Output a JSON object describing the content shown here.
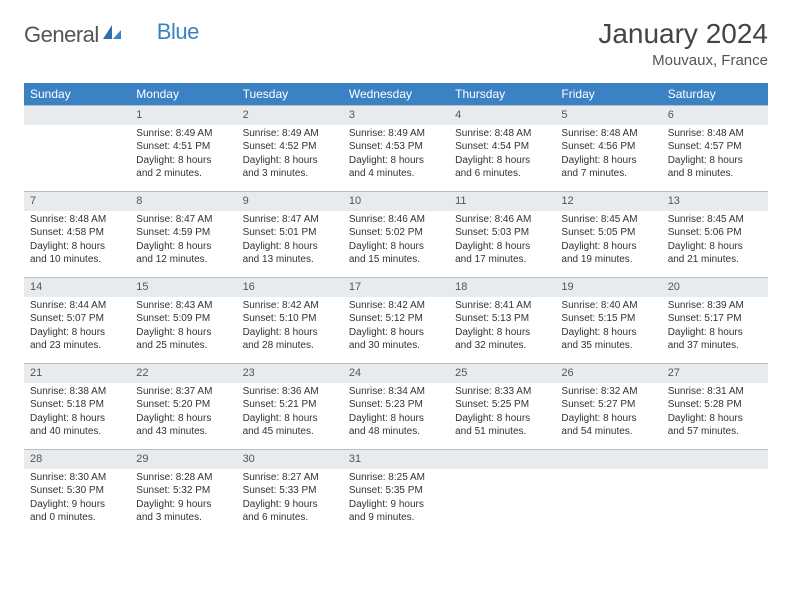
{
  "logo": {
    "text1": "General",
    "text2": "Blue"
  },
  "title": "January 2024",
  "location": "Mouvaux, France",
  "colors": {
    "header_bg": "#3b82c4",
    "header_text": "#ffffff",
    "daynum_bg": "#e8ebed",
    "daynum_border": "#b8c0c6",
    "body_text": "#333333",
    "page_bg": "#ffffff"
  },
  "fonts": {
    "title_size": 28,
    "location_size": 15,
    "weekday_size": 12,
    "daynum_size": 11,
    "body_size": 10
  },
  "weekdays": [
    "Sunday",
    "Monday",
    "Tuesday",
    "Wednesday",
    "Thursday",
    "Friday",
    "Saturday"
  ],
  "weeks": [
    [
      null,
      {
        "n": "1",
        "sr": "8:49 AM",
        "ss": "4:51 PM",
        "dl": "8 hours and 2 minutes."
      },
      {
        "n": "2",
        "sr": "8:49 AM",
        "ss": "4:52 PM",
        "dl": "8 hours and 3 minutes."
      },
      {
        "n": "3",
        "sr": "8:49 AM",
        "ss": "4:53 PM",
        "dl": "8 hours and 4 minutes."
      },
      {
        "n": "4",
        "sr": "8:48 AM",
        "ss": "4:54 PM",
        "dl": "8 hours and 6 minutes."
      },
      {
        "n": "5",
        "sr": "8:48 AM",
        "ss": "4:56 PM",
        "dl": "8 hours and 7 minutes."
      },
      {
        "n": "6",
        "sr": "8:48 AM",
        "ss": "4:57 PM",
        "dl": "8 hours and 8 minutes."
      }
    ],
    [
      {
        "n": "7",
        "sr": "8:48 AM",
        "ss": "4:58 PM",
        "dl": "8 hours and 10 minutes."
      },
      {
        "n": "8",
        "sr": "8:47 AM",
        "ss": "4:59 PM",
        "dl": "8 hours and 12 minutes."
      },
      {
        "n": "9",
        "sr": "8:47 AM",
        "ss": "5:01 PM",
        "dl": "8 hours and 13 minutes."
      },
      {
        "n": "10",
        "sr": "8:46 AM",
        "ss": "5:02 PM",
        "dl": "8 hours and 15 minutes."
      },
      {
        "n": "11",
        "sr": "8:46 AM",
        "ss": "5:03 PM",
        "dl": "8 hours and 17 minutes."
      },
      {
        "n": "12",
        "sr": "8:45 AM",
        "ss": "5:05 PM",
        "dl": "8 hours and 19 minutes."
      },
      {
        "n": "13",
        "sr": "8:45 AM",
        "ss": "5:06 PM",
        "dl": "8 hours and 21 minutes."
      }
    ],
    [
      {
        "n": "14",
        "sr": "8:44 AM",
        "ss": "5:07 PM",
        "dl": "8 hours and 23 minutes."
      },
      {
        "n": "15",
        "sr": "8:43 AM",
        "ss": "5:09 PM",
        "dl": "8 hours and 25 minutes."
      },
      {
        "n": "16",
        "sr": "8:42 AM",
        "ss": "5:10 PM",
        "dl": "8 hours and 28 minutes."
      },
      {
        "n": "17",
        "sr": "8:42 AM",
        "ss": "5:12 PM",
        "dl": "8 hours and 30 minutes."
      },
      {
        "n": "18",
        "sr": "8:41 AM",
        "ss": "5:13 PM",
        "dl": "8 hours and 32 minutes."
      },
      {
        "n": "19",
        "sr": "8:40 AM",
        "ss": "5:15 PM",
        "dl": "8 hours and 35 minutes."
      },
      {
        "n": "20",
        "sr": "8:39 AM",
        "ss": "5:17 PM",
        "dl": "8 hours and 37 minutes."
      }
    ],
    [
      {
        "n": "21",
        "sr": "8:38 AM",
        "ss": "5:18 PM",
        "dl": "8 hours and 40 minutes."
      },
      {
        "n": "22",
        "sr": "8:37 AM",
        "ss": "5:20 PM",
        "dl": "8 hours and 43 minutes."
      },
      {
        "n": "23",
        "sr": "8:36 AM",
        "ss": "5:21 PM",
        "dl": "8 hours and 45 minutes."
      },
      {
        "n": "24",
        "sr": "8:34 AM",
        "ss": "5:23 PM",
        "dl": "8 hours and 48 minutes."
      },
      {
        "n": "25",
        "sr": "8:33 AM",
        "ss": "5:25 PM",
        "dl": "8 hours and 51 minutes."
      },
      {
        "n": "26",
        "sr": "8:32 AM",
        "ss": "5:27 PM",
        "dl": "8 hours and 54 minutes."
      },
      {
        "n": "27",
        "sr": "8:31 AM",
        "ss": "5:28 PM",
        "dl": "8 hours and 57 minutes."
      }
    ],
    [
      {
        "n": "28",
        "sr": "8:30 AM",
        "ss": "5:30 PM",
        "dl": "9 hours and 0 minutes."
      },
      {
        "n": "29",
        "sr": "8:28 AM",
        "ss": "5:32 PM",
        "dl": "9 hours and 3 minutes."
      },
      {
        "n": "30",
        "sr": "8:27 AM",
        "ss": "5:33 PM",
        "dl": "9 hours and 6 minutes."
      },
      {
        "n": "31",
        "sr": "8:25 AM",
        "ss": "5:35 PM",
        "dl": "9 hours and 9 minutes."
      },
      null,
      null,
      null
    ]
  ],
  "labels": {
    "sunrise": "Sunrise:",
    "sunset": "Sunset:",
    "daylight": "Daylight:"
  }
}
